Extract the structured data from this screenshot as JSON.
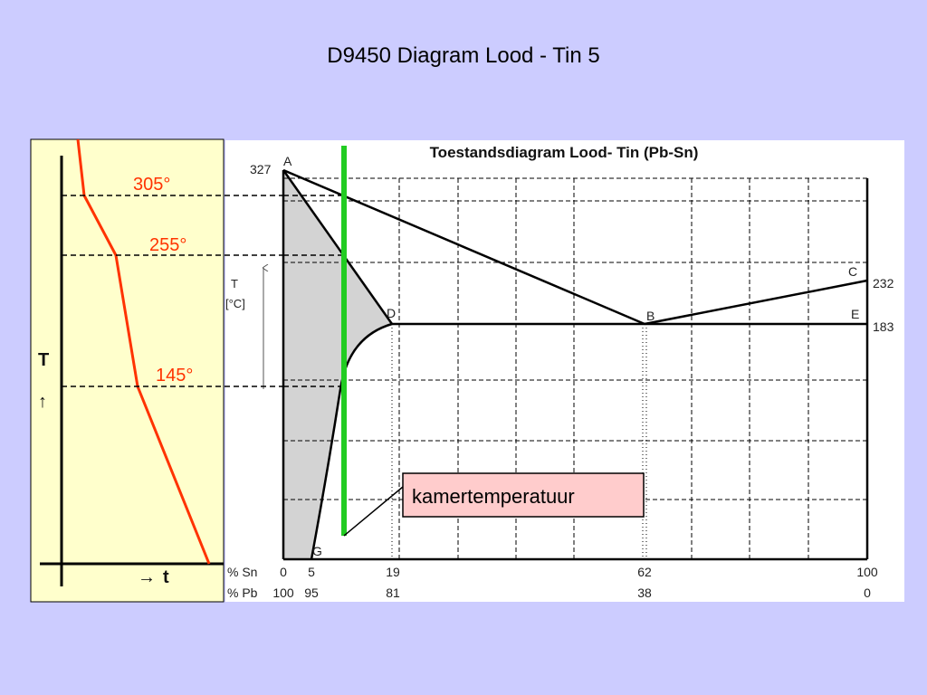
{
  "slide": {
    "title": "D9450 Diagram Lood - Tin 5"
  },
  "cooling_curve": {
    "axis_y_label": "T",
    "axis_y_arrow": "↑",
    "axis_x_arrow": "→",
    "axis_x_label": "t",
    "markers": [
      {
        "label": "305°",
        "temperature": 305
      },
      {
        "label": "255°",
        "temperature": 255
      },
      {
        "label": "145°",
        "temperature": 145
      }
    ],
    "line_color": "#ff3300"
  },
  "phase_diagram": {
    "title": "Toestandsdiagram Lood- Tin (Pb-Sn)",
    "y_axis_label_1": "T",
    "y_axis_label_2": "[°C]",
    "temperature_labels": {
      "pb_melt": "327",
      "sn_melt": "232",
      "eutectic": "183"
    },
    "points": {
      "A": "A",
      "B": "B",
      "C": "C",
      "D": "D",
      "E": "E",
      "G": "G"
    },
    "sn_row_label": "% Sn",
    "pb_row_label": "% Pb",
    "sn_values": [
      "0",
      "5",
      "19",
      "62",
      "100"
    ],
    "pb_values": [
      "100",
      "95",
      "81",
      "38",
      "0"
    ],
    "composition_line_color": "#22cc22",
    "two_phase_fill": "#d3d3d3"
  },
  "callout": {
    "text": "kamertemperatuur"
  }
}
